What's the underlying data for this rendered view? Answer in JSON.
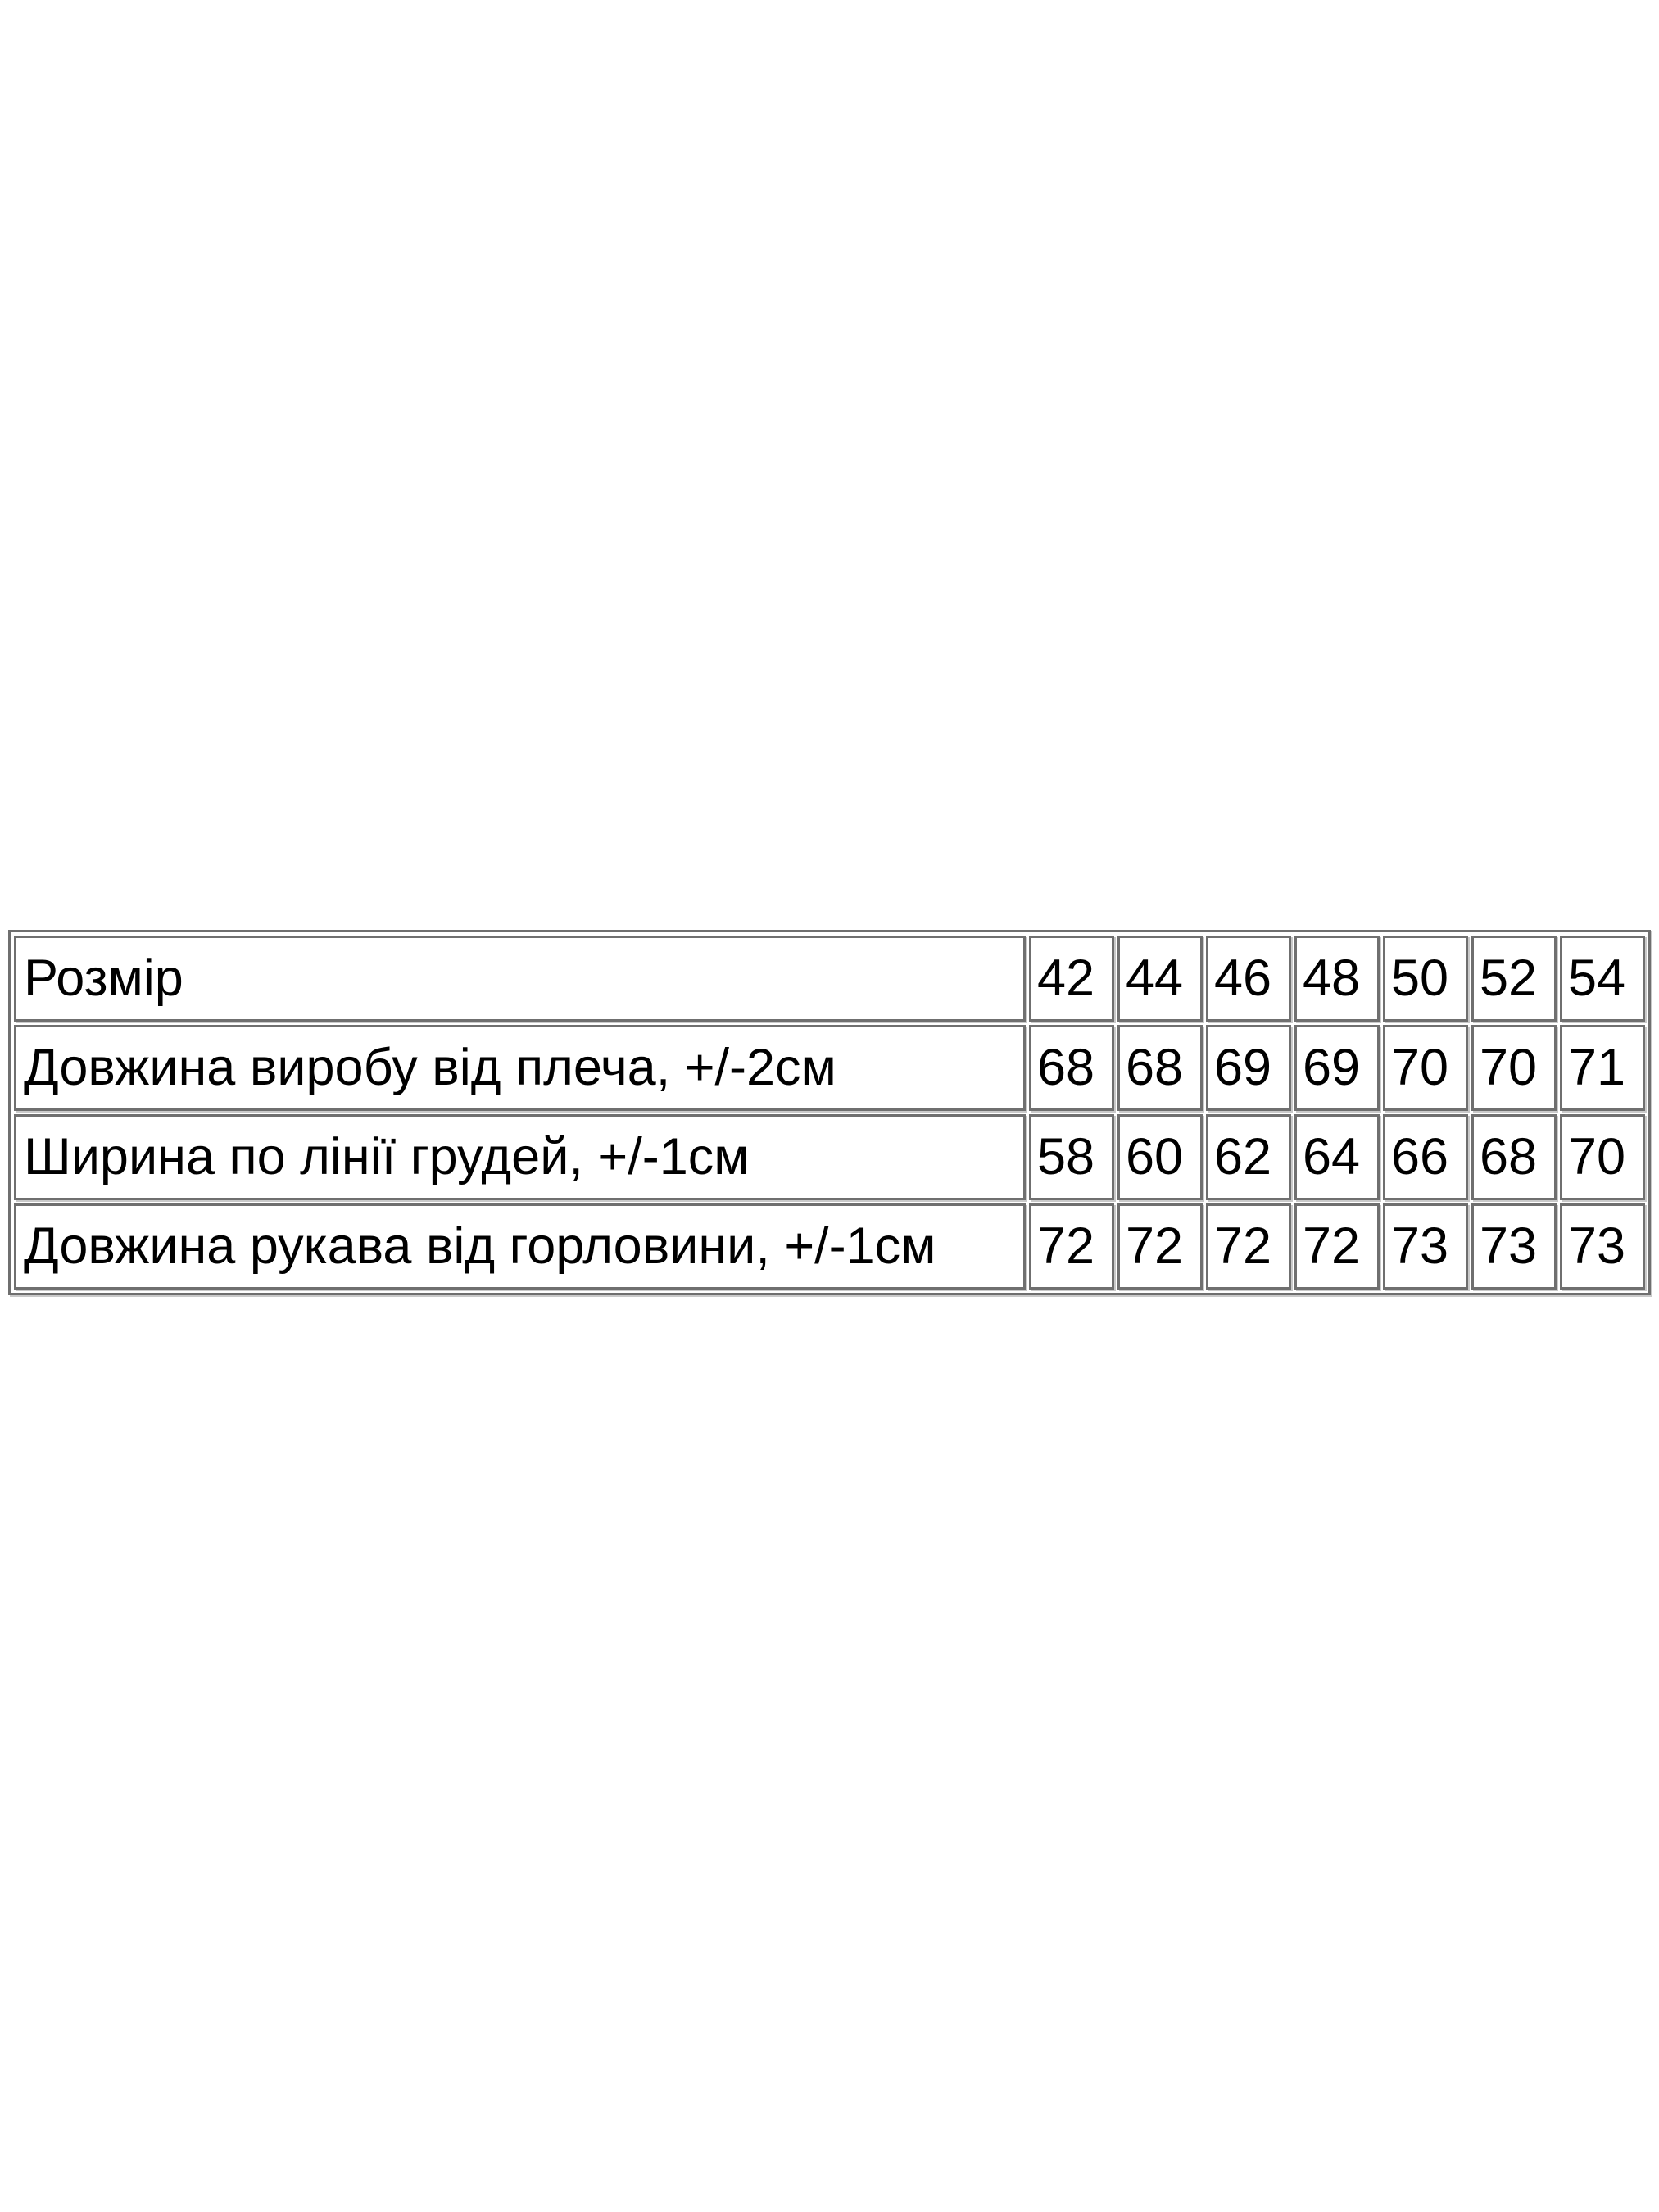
{
  "page": {
    "background_color": "#ffffff",
    "text_color": "#000000",
    "table_border_color": "#6f6f6f"
  },
  "size_chart": {
    "type": "table",
    "columns_count": 8,
    "rows": [
      {
        "label": "Розмір",
        "values": [
          "42",
          "44",
          "46",
          "48",
          "50",
          "52",
          "54"
        ]
      },
      {
        "label": "Довжина виробу від плеча, +/-2см",
        "values": [
          "68",
          "68",
          "69",
          "69",
          "70",
          "70",
          "71"
        ]
      },
      {
        "label": "Ширина по лінії грудей, +/-1см",
        "values": [
          "58",
          "60",
          "62",
          "64",
          "66",
          "68",
          "70"
        ]
      },
      {
        "label": "Довжина рукава від горловини, +/-1см",
        "values": [
          "72",
          "72",
          "72",
          "72",
          "73",
          "73",
          "73"
        ]
      }
    ]
  }
}
